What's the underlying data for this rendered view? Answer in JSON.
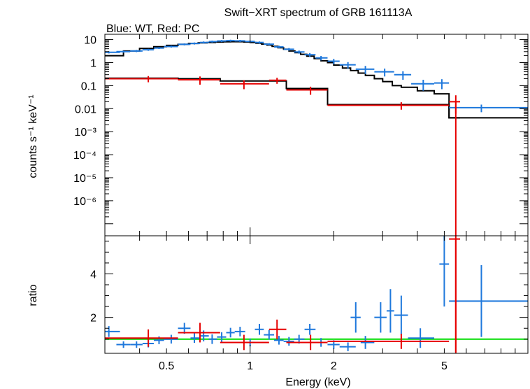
{
  "chart_data": [
    {
      "type": "scatter",
      "panel": "spectrum",
      "title": "Swift−XRT spectrum of GRB 161113A",
      "subtitle": "Blue: WT, Red: PC",
      "xlabel": "Energy (keV)",
      "ylabel": "counts s⁻¹ keV⁻¹",
      "xscale": "log",
      "yscale": "log",
      "xlim": [
        0.3,
        10
      ],
      "ylim": [
        3e-08,
        17
      ],
      "grid": false,
      "yticks": [
        {
          "value": 10,
          "label": "10"
        },
        {
          "value": 1,
          "label": "1"
        },
        {
          "value": 0.1,
          "label": "0.1"
        },
        {
          "value": 0.01,
          "label": "0.01"
        },
        {
          "value": 0.001,
          "label": "10⁻³"
        },
        {
          "value": 0.0001,
          "label": "10⁻⁴"
        },
        {
          "value": 1e-05,
          "label": "10⁻⁵"
        },
        {
          "value": 1e-06,
          "label": "10⁻⁶"
        }
      ],
      "series": [
        {
          "color": "#1e78dc",
          "kind": "data",
          "points": [
            [
              0.31,
              2.8,
              0.29,
              0.34,
              0.3
            ],
            [
              0.35,
              3.0,
              0.33,
              0.37,
              0.3
            ],
            [
              0.39,
              3.2,
              0.37,
              0.41,
              0.35
            ],
            [
              0.43,
              3.6,
              0.41,
              0.45,
              0.35
            ],
            [
              0.47,
              4.3,
              0.45,
              0.49,
              0.4
            ],
            [
              0.52,
              5.0,
              0.49,
              0.55,
              0.5
            ],
            [
              0.58,
              6.2,
              0.55,
              0.61,
              0.6
            ],
            [
              0.63,
              6.8,
              0.61,
              0.66,
              0.7
            ],
            [
              0.68,
              7.5,
              0.66,
              0.71,
              0.8
            ],
            [
              0.73,
              8.2,
              0.71,
              0.76,
              0.8
            ],
            [
              0.79,
              8.7,
              0.76,
              0.82,
              0.9
            ],
            [
              0.85,
              9.0,
              0.82,
              0.88,
              0.9
            ],
            [
              0.92,
              8.8,
              0.88,
              0.96,
              0.9
            ],
            [
              1.0,
              8.3,
              0.96,
              1.04,
              0.8
            ],
            [
              1.08,
              7.5,
              1.04,
              1.12,
              0.8
            ],
            [
              1.17,
              6.3,
              1.12,
              1.22,
              0.7
            ],
            [
              1.27,
              4.8,
              1.22,
              1.32,
              0.6
            ],
            [
              1.38,
              3.8,
              1.32,
              1.44,
              0.5
            ],
            [
              1.5,
              2.9,
              1.44,
              1.57,
              0.45
            ],
            [
              1.64,
              2.2,
              1.57,
              1.72,
              0.4
            ],
            [
              1.8,
              1.6,
              1.72,
              1.9,
              0.35
            ],
            [
              2.0,
              1.15,
              1.9,
              2.1,
              0.3
            ],
            [
              2.25,
              0.8,
              2.1,
              2.4,
              0.25
            ],
            [
              2.6,
              0.52,
              2.4,
              2.8,
              0.2
            ],
            [
              3.05,
              0.4,
              2.8,
              3.3,
              0.15
            ],
            [
              3.55,
              0.3,
              3.3,
              3.8,
              0.12
            ],
            [
              4.2,
              0.12,
              3.8,
              4.6,
              0.06
            ],
            [
              4.9,
              0.13,
              4.6,
              5.2,
              0.06
            ],
            [
              6.8,
              0.011,
              5.2,
              10,
              0.004
            ]
          ]
        },
        {
          "color": "#e60000",
          "kind": "data",
          "points": [
            [
              0.43,
              0.2,
              0.3,
              0.55,
              0.06
            ],
            [
              0.66,
              0.18,
              0.55,
              0.78,
              0.07
            ],
            [
              0.95,
              0.12,
              0.78,
              1.17,
              0.05
            ],
            [
              1.25,
              0.17,
              1.17,
              1.35,
              0.05
            ],
            [
              1.65,
              0.065,
              1.35,
              1.9,
              0.025
            ],
            [
              3.5,
              0.014,
              1.9,
              5.2,
              0.005
            ],
            [
              5.5,
              0.02,
              5.2,
              5.7,
              0.018
            ]
          ]
        },
        {
          "color": "#000000",
          "kind": "model-wt",
          "edges": [
            0.3,
            0.35,
            0.4,
            0.45,
            0.5,
            0.55,
            0.6,
            0.65,
            0.7,
            0.75,
            0.8,
            0.85,
            0.9,
            0.95,
            1.0,
            1.05,
            1.1,
            1.15,
            1.2,
            1.26,
            1.32,
            1.38,
            1.45,
            1.52,
            1.6,
            1.7,
            1.8,
            1.9,
            2.0,
            2.15,
            2.3,
            2.45,
            2.6,
            2.8,
            3.0,
            3.25,
            3.5,
            4.0,
            4.6,
            5.2,
            10
          ],
          "values": [
            2.0,
            3.2,
            4.1,
            4.9,
            5.6,
            6.2,
            6.8,
            7.2,
            7.5,
            7.8,
            8.0,
            8.1,
            8.1,
            7.9,
            7.5,
            7.0,
            6.4,
            5.8,
            5.1,
            4.4,
            3.8,
            3.2,
            2.7,
            2.3,
            1.9,
            1.5,
            1.2,
            1.0,
            0.78,
            0.58,
            0.45,
            0.35,
            0.28,
            0.2,
            0.15,
            0.1,
            0.085,
            0.06,
            0.044,
            0.004
          ]
        },
        {
          "color": "#000000",
          "kind": "model-pc",
          "edges": [
            0.3,
            0.55,
            0.78,
            1.17,
            1.35,
            1.9,
            5.2,
            5.7
          ],
          "values": [
            0.21,
            0.2,
            0.16,
            0.16,
            0.075,
            0.015,
            0.004
          ]
        }
      ]
    },
    {
      "type": "scatter",
      "panel": "ratio",
      "xlabel": "Energy (keV)",
      "ylabel": "ratio",
      "xscale": "log",
      "xlim": [
        0.3,
        10
      ],
      "ylim": [
        0.35,
        5.75
      ],
      "grid": false,
      "xticks": [
        {
          "value": 0.5,
          "label": "0.5"
        },
        {
          "value": 1,
          "label": "1"
        },
        {
          "value": 2,
          "label": "2"
        },
        {
          "value": 5,
          "label": "5"
        }
      ],
      "yticks": [
        {
          "value": 2,
          "label": "2"
        },
        {
          "value": 4,
          "label": "4"
        }
      ],
      "reference_line": {
        "value": 1,
        "color": "#00dc00"
      },
      "series": [
        {
          "color": "#1e78dc",
          "points": [
            [
              0.31,
              1.35,
              0.29,
              0.34,
              0.25
            ],
            [
              0.35,
              0.75,
              0.33,
              0.37,
              0.15
            ],
            [
              0.39,
              0.75,
              0.37,
              0.41,
              0.15
            ],
            [
              0.43,
              0.8,
              0.41,
              0.45,
              0.18
            ],
            [
              0.47,
              0.95,
              0.45,
              0.49,
              0.18
            ],
            [
              0.52,
              1.0,
              0.49,
              0.55,
              0.2
            ],
            [
              0.58,
              1.5,
              0.55,
              0.61,
              0.25
            ],
            [
              0.63,
              1.05,
              0.61,
              0.66,
              0.22
            ],
            [
              0.68,
              1.15,
              0.66,
              0.71,
              0.25
            ],
            [
              0.73,
              1.0,
              0.71,
              0.76,
              0.22
            ],
            [
              0.79,
              1.1,
              0.76,
              0.82,
              0.22
            ],
            [
              0.85,
              1.3,
              0.82,
              0.88,
              0.22
            ],
            [
              0.92,
              1.35,
              0.88,
              0.96,
              0.22
            ],
            [
              1.0,
              0.85,
              0.96,
              1.04,
              0.18
            ],
            [
              1.08,
              1.45,
              1.04,
              1.12,
              0.25
            ],
            [
              1.17,
              1.2,
              1.12,
              1.22,
              0.22
            ],
            [
              1.27,
              0.95,
              1.22,
              1.32,
              0.2
            ],
            [
              1.38,
              0.9,
              1.32,
              1.44,
              0.2
            ],
            [
              1.5,
              1.0,
              1.44,
              1.57,
              0.2
            ],
            [
              1.64,
              1.45,
              1.57,
              1.72,
              0.25
            ],
            [
              1.8,
              0.85,
              1.72,
              1.9,
              0.2
            ],
            [
              2.0,
              0.75,
              1.9,
              2.1,
              0.2
            ],
            [
              2.25,
              0.65,
              2.1,
              2.4,
              0.2
            ],
            [
              2.4,
              2.0,
              2.3,
              2.5,
              0.7
            ],
            [
              2.6,
              0.85,
              2.5,
              2.8,
              0.3
            ],
            [
              2.95,
              2.0,
              2.8,
              3.1,
              0.7
            ],
            [
              3.2,
              2.3,
              3.1,
              3.3,
              1.0
            ],
            [
              3.5,
              2.1,
              3.3,
              3.7,
              0.9
            ],
            [
              4.1,
              1.05,
              3.7,
              4.6,
              0.45
            ],
            [
              5.0,
              4.45,
              4.8,
              5.2,
              1.95
            ],
            [
              6.8,
              2.75,
              5.2,
              10,
              1.65
            ]
          ]
        },
        {
          "color": "#e60000",
          "points": [
            [
              0.43,
              1.05,
              0.3,
              0.55,
              0.4
            ],
            [
              0.66,
              1.3,
              0.55,
              0.78,
              0.45
            ],
            [
              0.95,
              0.85,
              0.78,
              1.17,
              0.35
            ],
            [
              1.25,
              1.45,
              1.17,
              1.35,
              0.45
            ],
            [
              1.65,
              0.85,
              1.35,
              1.9,
              0.35
            ],
            [
              3.5,
              0.9,
              1.9,
              5.2,
              0.35
            ],
            [
              5.5,
              5.6,
              5.2,
              5.7,
              5.2
            ]
          ]
        }
      ]
    }
  ]
}
